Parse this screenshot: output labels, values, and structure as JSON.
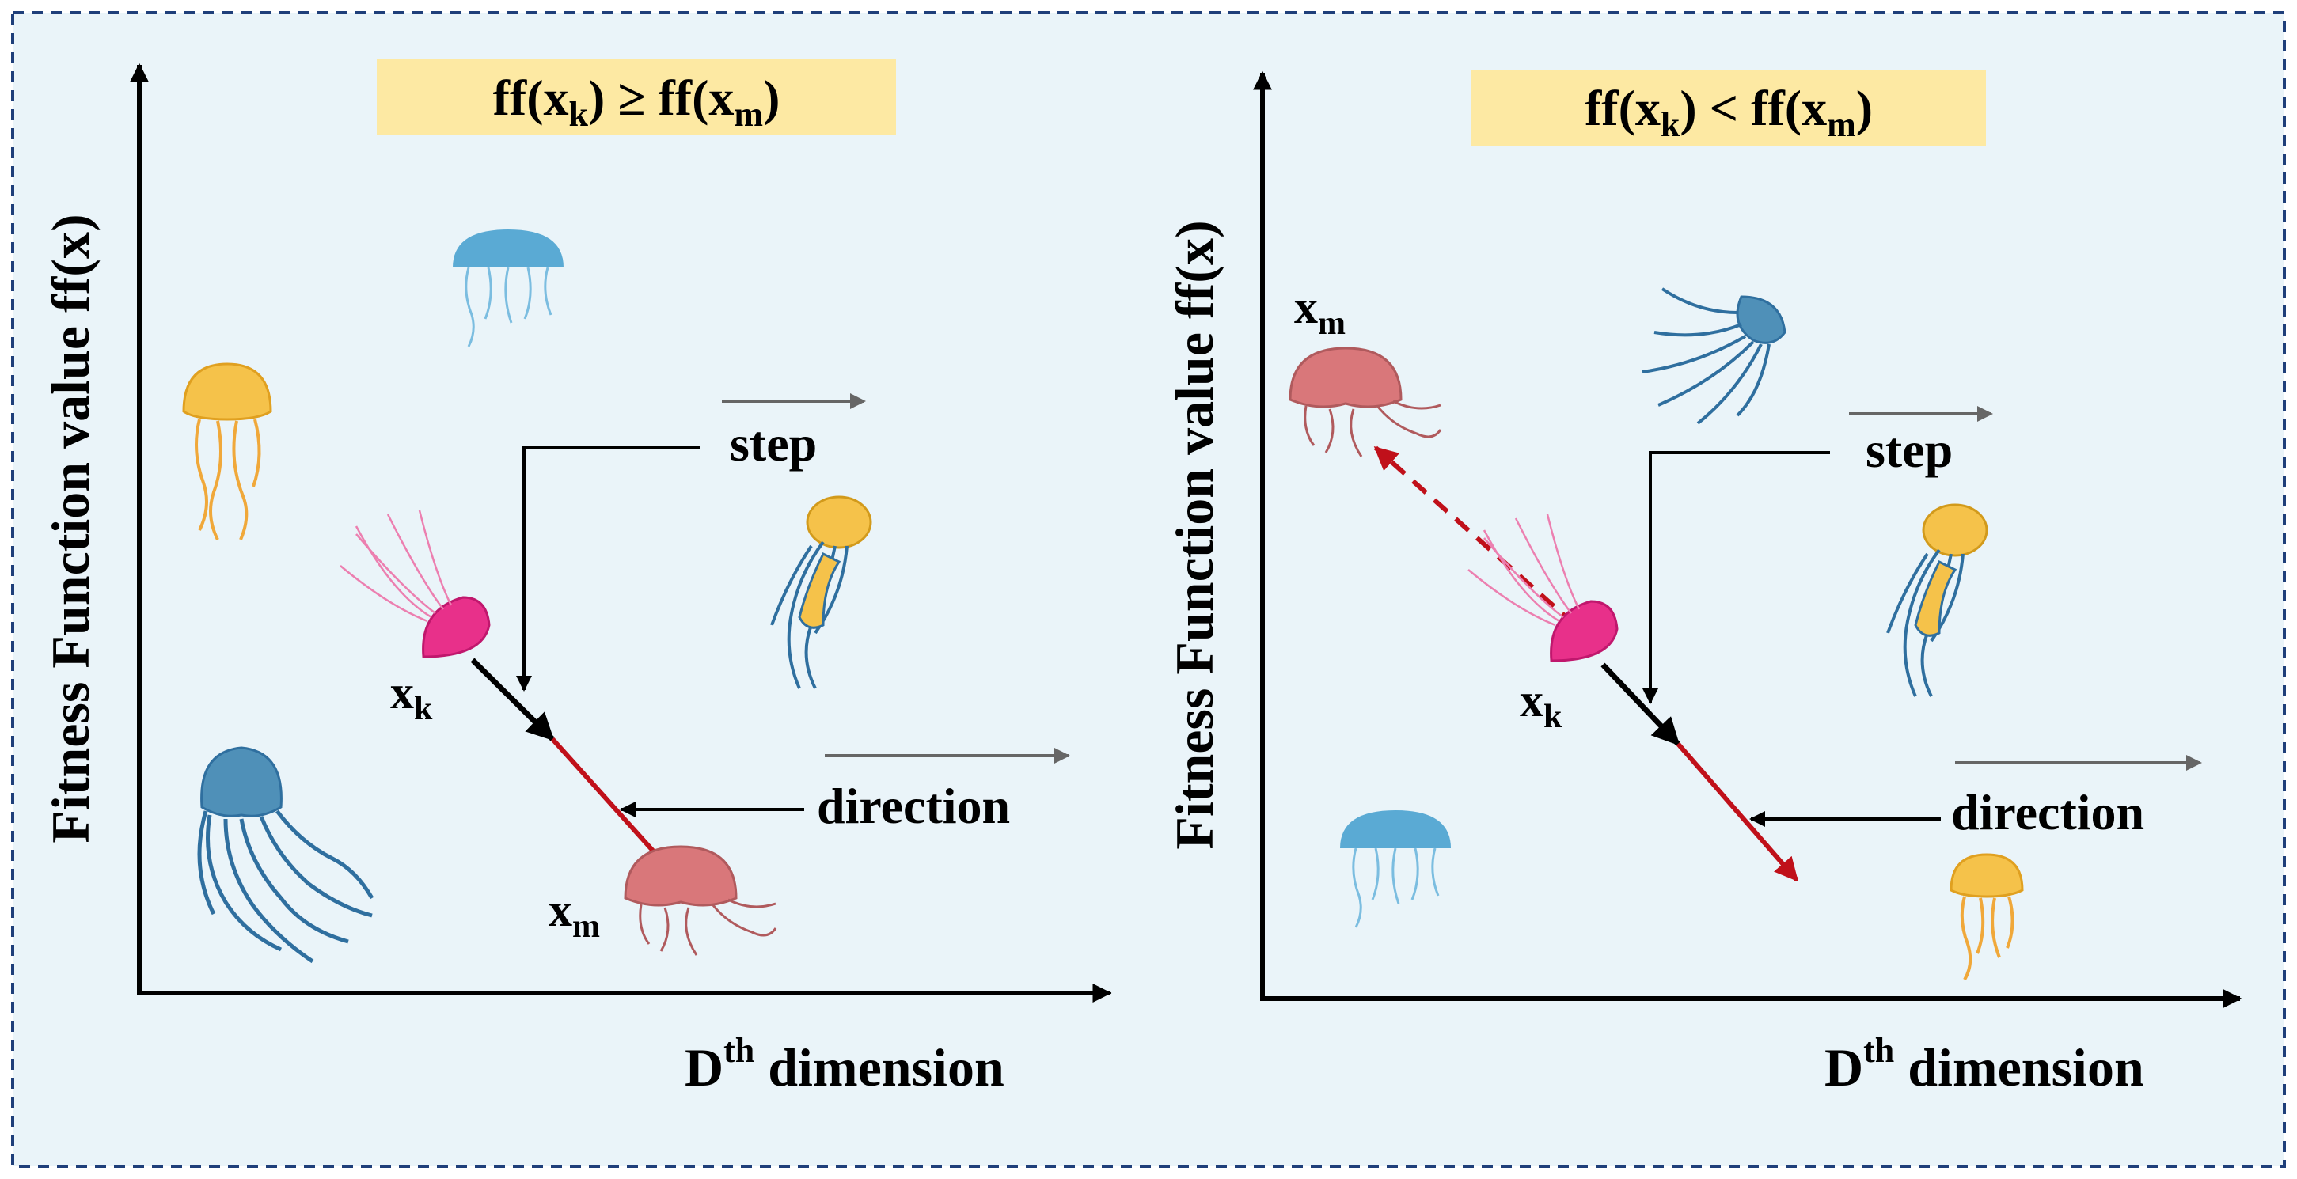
{
  "colors": {
    "panel_bg": "#eaf4f9",
    "frame_dash": "#1f3f7a",
    "banner": "#fde9a3",
    "axis": "#000000",
    "step_arrow": "#000000",
    "direction_arrow": "#c0101a",
    "guide_arrow": "#666666",
    "jelly_pink": "#e8308a",
    "jelly_salmon": "#d9777a",
    "jelly_blue": "#2f6f9f",
    "jelly_light_blue": "#5aaad4",
    "jelly_yellow": "#f5c24a"
  },
  "left_panel": {
    "condition": {
      "main1": "ff(x",
      "sub1": "k",
      "mid": ") ≥ ff(x",
      "sub2": "m",
      "end": ")"
    },
    "y_axis_label": "Fitness Function value ff(x)",
    "x_axis_label": {
      "base": "D",
      "sup": "th",
      "rest": " dimension"
    },
    "step_label": "step",
    "direction_label": "direction",
    "point_k": {
      "base": "x",
      "sub": "k"
    },
    "point_m": {
      "base": "x",
      "sub": "m"
    },
    "icons": [
      "yellow-jellyfish-icon",
      "light-blue-jellyfish-icon",
      "yellow-blue-jellyfish-icon",
      "pink-jellyfish-icon",
      "salmon-jellyfish-icon",
      "blue-jellyfish-icon"
    ]
  },
  "right_panel": {
    "condition": {
      "main1": "ff(x",
      "sub1": "k",
      "mid": ") < ff(x",
      "sub2": "m",
      "end": ")"
    },
    "y_axis_label": "Fitness Function value ff(x)",
    "x_axis_label": {
      "base": "D",
      "sup": "th",
      "rest": " dimension"
    },
    "step_label": "step",
    "direction_label": "direction",
    "point_k": {
      "base": "x",
      "sub": "k"
    },
    "point_m": {
      "base": "x",
      "sub": "m"
    },
    "icons": [
      "salmon-jellyfish-icon",
      "blue-jellyfish-icon",
      "yellow-blue-jellyfish-icon",
      "pink-jellyfish-icon",
      "light-blue-jellyfish-icon",
      "yellow-jellyfish-icon"
    ]
  }
}
